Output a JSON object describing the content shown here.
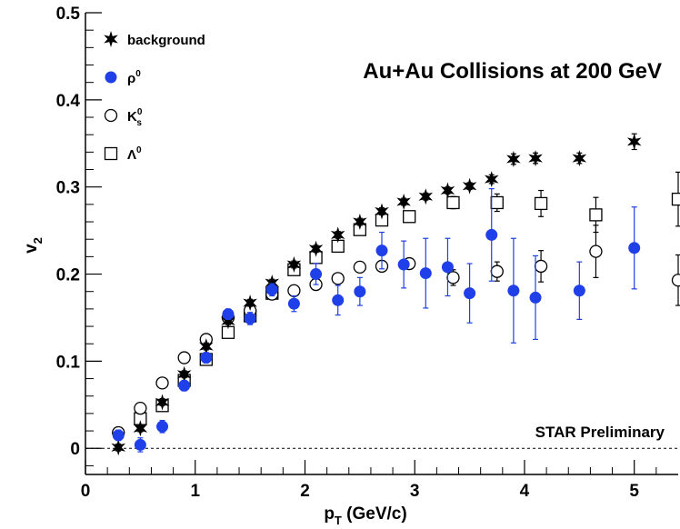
{
  "chart_data": {
    "type": "scatter",
    "title": "Au+Au Collisions at 200 GeV",
    "annotation": "STAR Preliminary",
    "xlabel": {
      "main": "p",
      "sub": "T",
      "rest": " (GeV/c)"
    },
    "ylabel": {
      "main": "v",
      "sub": "2"
    },
    "xlim": [
      0,
      5.4
    ],
    "ylim": [
      -0.03,
      0.5
    ],
    "xticks": [
      0,
      1,
      2,
      3,
      4,
      5
    ],
    "yticks": [
      0,
      0.1,
      0.2,
      0.3,
      0.4,
      0.5
    ],
    "xtick_labels": [
      "0",
      "1",
      "2",
      "3",
      "4",
      "5"
    ],
    "ytick_labels": [
      "0",
      "0.1",
      "0.2",
      "0.3",
      "0.4",
      "0.5"
    ],
    "legend_position": "top-left",
    "zero_line": "dashed",
    "series": [
      {
        "name": "background",
        "label": {
          "main": "background"
        },
        "marker": "star",
        "color": "#000000",
        "points": [
          [
            0.3,
            0.001,
            0.004
          ],
          [
            0.5,
            0.023,
            0.004
          ],
          [
            0.7,
            0.053,
            0.004
          ],
          [
            0.9,
            0.085,
            0.004
          ],
          [
            1.1,
            0.117,
            0.004
          ],
          [
            1.3,
            0.146,
            0.004
          ],
          [
            1.5,
            0.167,
            0.004
          ],
          [
            1.7,
            0.19,
            0.004
          ],
          [
            1.9,
            0.211,
            0.004
          ],
          [
            2.1,
            0.229,
            0.004
          ],
          [
            2.3,
            0.245,
            0.004
          ],
          [
            2.5,
            0.26,
            0.004
          ],
          [
            2.7,
            0.272,
            0.004
          ],
          [
            2.9,
            0.283,
            0.004
          ],
          [
            3.1,
            0.289,
            0.004
          ],
          [
            3.3,
            0.296,
            0.004
          ],
          [
            3.5,
            0.301,
            0.004
          ],
          [
            3.7,
            0.309,
            0.005
          ],
          [
            3.9,
            0.332,
            0.006
          ],
          [
            4.1,
            0.333,
            0.006
          ],
          [
            4.5,
            0.333,
            0.006
          ],
          [
            5.0,
            0.352,
            0.009
          ]
        ]
      },
      {
        "name": "ρ0",
        "label": {
          "main": "ρ",
          "sup": "0"
        },
        "marker": "filled-circle",
        "color": "#1f3fe8",
        "points": [
          [
            0.3,
            0.015,
            0.006
          ],
          [
            0.5,
            0.004,
            0.008
          ],
          [
            0.7,
            0.025,
            0.007
          ],
          [
            0.9,
            0.072,
            0.006
          ],
          [
            1.1,
            0.104,
            0.006
          ],
          [
            1.3,
            0.154,
            0.006
          ],
          [
            1.5,
            0.149,
            0.007
          ],
          [
            1.7,
            0.182,
            0.007
          ],
          [
            1.9,
            0.166,
            0.009
          ],
          [
            2.1,
            0.2,
            0.012
          ],
          [
            2.3,
            0.17,
            0.017
          ],
          [
            2.5,
            0.18,
            0.016
          ],
          [
            2.7,
            0.227,
            0.021
          ],
          [
            2.9,
            0.211,
            0.027
          ],
          [
            3.1,
            0.201,
            0.04
          ],
          [
            3.3,
            0.208,
            0.033
          ],
          [
            3.5,
            0.178,
            0.034
          ],
          [
            3.7,
            0.245,
            0.053
          ],
          [
            3.9,
            0.181,
            0.06
          ],
          [
            4.1,
            0.173,
            0.048
          ],
          [
            4.5,
            0.181,
            0.033
          ],
          [
            5.0,
            0.23,
            0.047
          ]
        ]
      },
      {
        "name": "K0s",
        "label": {
          "main": "K",
          "sup": "0",
          "sub": "s"
        },
        "marker": "open-circle",
        "color": "#000000",
        "points": [
          [
            0.3,
            0.018,
            0.003
          ],
          [
            0.5,
            0.046,
            0.003
          ],
          [
            0.7,
            0.075,
            0.003
          ],
          [
            0.9,
            0.104,
            0.003
          ],
          [
            1.1,
            0.125,
            0.003
          ],
          [
            1.3,
            0.15,
            0.003
          ],
          [
            1.5,
            0.158,
            0.003
          ],
          [
            1.7,
            0.177,
            0.003
          ],
          [
            1.9,
            0.181,
            0.003
          ],
          [
            2.1,
            0.188,
            0.003
          ],
          [
            2.3,
            0.195,
            0.004
          ],
          [
            2.5,
            0.208,
            0.004
          ],
          [
            2.7,
            0.209,
            0.004
          ],
          [
            2.95,
            0.212,
            0.005
          ],
          [
            3.35,
            0.196,
            0.009
          ],
          [
            3.75,
            0.203,
            0.011
          ],
          [
            4.15,
            0.209,
            0.018
          ],
          [
            4.65,
            0.226,
            0.03
          ],
          [
            5.4,
            0.193,
            0.029
          ]
        ]
      },
      {
        "name": "Λ0",
        "label": {
          "main": "Λ",
          "sup": "0"
        },
        "marker": "open-square",
        "color": "#000000",
        "points": [
          [
            0.5,
            0.034,
            0.004
          ],
          [
            0.7,
            0.049,
            0.004
          ],
          [
            0.9,
            0.078,
            0.004
          ],
          [
            1.1,
            0.102,
            0.004
          ],
          [
            1.3,
            0.133,
            0.004
          ],
          [
            1.5,
            0.152,
            0.004
          ],
          [
            1.7,
            0.178,
            0.004
          ],
          [
            1.9,
            0.205,
            0.004
          ],
          [
            2.1,
            0.219,
            0.004
          ],
          [
            2.3,
            0.232,
            0.004
          ],
          [
            2.5,
            0.251,
            0.004
          ],
          [
            2.7,
            0.262,
            0.005
          ],
          [
            2.95,
            0.266,
            0.005
          ],
          [
            3.35,
            0.282,
            0.007
          ],
          [
            3.75,
            0.282,
            0.01
          ],
          [
            4.15,
            0.281,
            0.015
          ],
          [
            4.65,
            0.268,
            0.02
          ],
          [
            5.4,
            0.286,
            0.031
          ]
        ]
      }
    ]
  }
}
